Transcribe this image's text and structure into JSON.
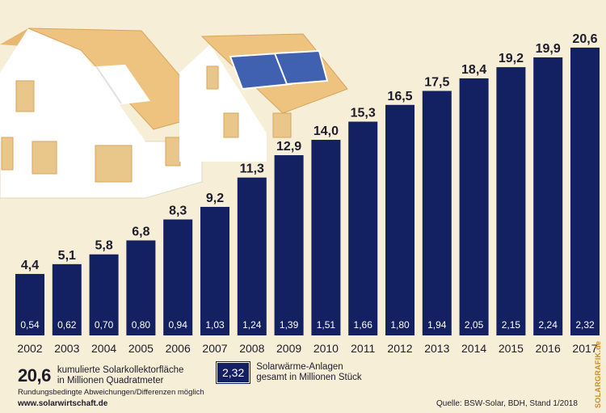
{
  "chart_data": {
    "type": "bar",
    "categories": [
      "2002",
      "2003",
      "2004",
      "2005",
      "2006",
      "2007",
      "2008",
      "2009",
      "2010",
      "2011",
      "2012",
      "2013",
      "2014",
      "2015",
      "2016",
      "2017"
    ],
    "series": [
      {
        "name": "kumulierte Solarkollektorfläche in Millionen Quadratmeter",
        "values": [
          4.4,
          5.1,
          5.8,
          6.8,
          8.3,
          9.2,
          11.3,
          12.9,
          14.0,
          15.3,
          16.5,
          17.5,
          18.4,
          19.2,
          19.9,
          20.6
        ]
      },
      {
        "name": "Solarwärme-Anlagen gesamt in Millionen Stück",
        "values": [
          0.54,
          0.62,
          0.7,
          0.8,
          0.94,
          1.03,
          1.24,
          1.39,
          1.51,
          1.66,
          1.8,
          1.94,
          2.05,
          2.15,
          2.24,
          2.32
        ]
      }
    ],
    "top_labels": [
      "4,4",
      "5,1",
      "5,8",
      "6,8",
      "8,3",
      "9,2",
      "11,3",
      "12,9",
      "14,0",
      "15,3",
      "16,5",
      "17,5",
      "18,4",
      "19,2",
      "19,9",
      "20,6"
    ],
    "inner_labels": [
      "0,54",
      "0,62",
      "0,70",
      "0,80",
      "0,94",
      "1,03",
      "1,24",
      "1,39",
      "1,51",
      "1,66",
      "1,80",
      "1,94",
      "2,05",
      "2,15",
      "2,24",
      "2,32"
    ],
    "ylim": [
      0,
      21
    ],
    "bar_color": "#132062"
  },
  "legend": {
    "area_value": "20,6",
    "area_text_line1": "kumulierte Solarkollektorfläche",
    "area_text_line2": "in Millionen Quadratmeter",
    "count_value": "2,32",
    "count_text_line1": "Solarwärme-Anlagen",
    "count_text_line2": "gesamt in Millionen Stück"
  },
  "note": "Rundungsbedingte Abweichungen/Differenzen möglich",
  "website": "www.solarwirtschaft.de",
  "source": "Quelle: BSW-Solar, BDH, Stand 1/2018",
  "brand": "SOLARGRAFIK.de",
  "colors": {
    "background": "#f7eed7",
    "roof": "#e8b870",
    "panel": "#4060b0",
    "accent": "#d18a1e"
  }
}
